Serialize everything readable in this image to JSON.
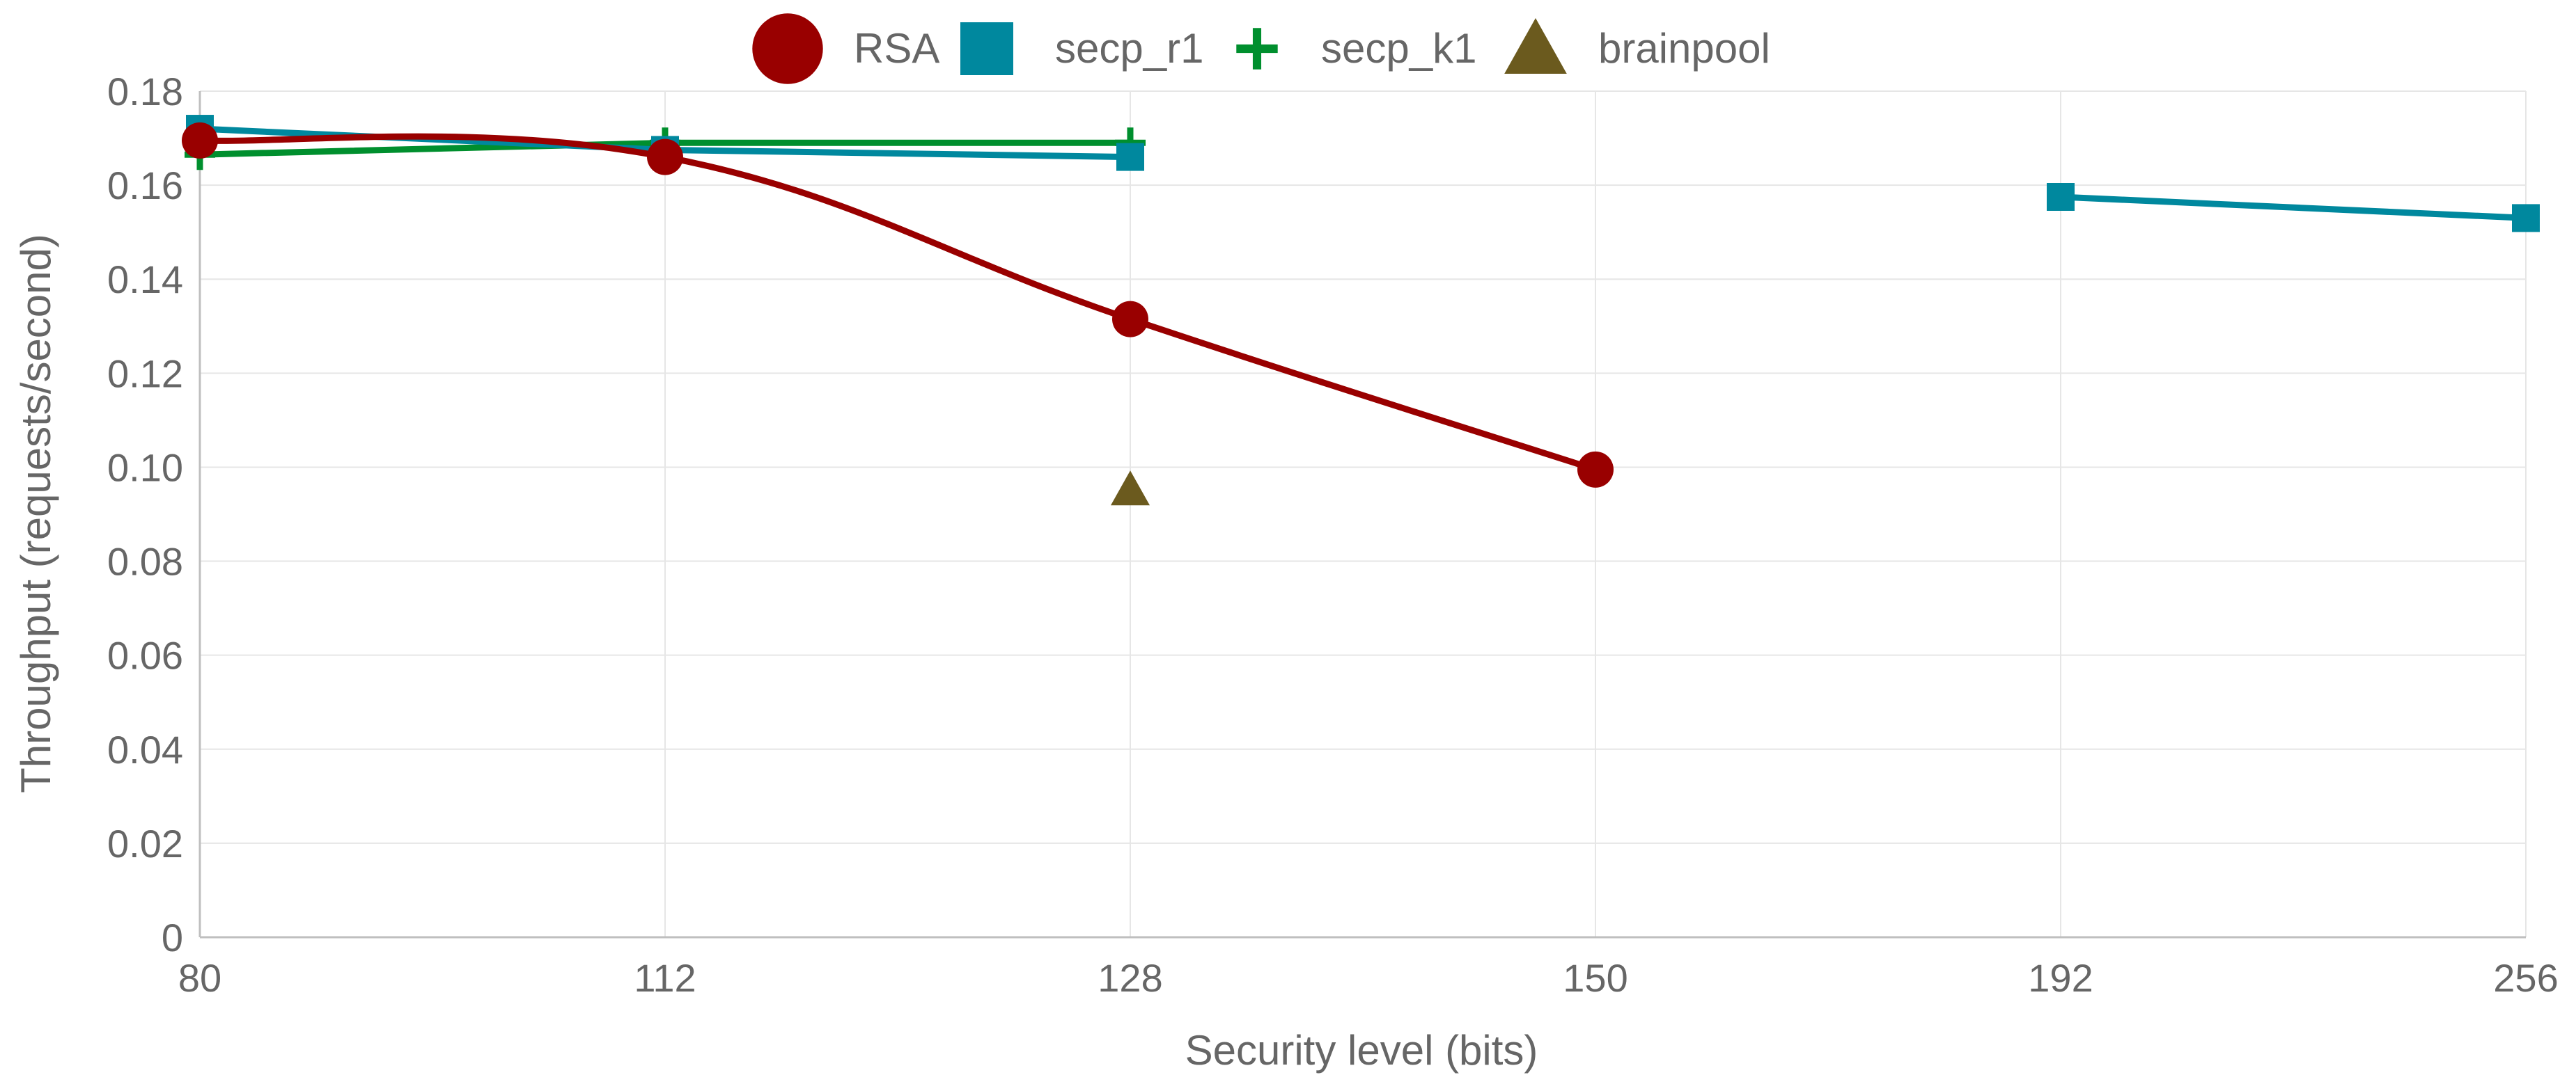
{
  "chart_data": {
    "type": "line",
    "x_axis_kind": "categorical",
    "categories": [
      "80",
      "112",
      "128",
      "150",
      "192",
      "256"
    ],
    "xlabel": "Security level (bits)",
    "ylabel": "Throughput (requests/second)",
    "ylim": [
      0,
      0.18
    ],
    "yticks": [
      0,
      0.02,
      0.04,
      0.06,
      0.08,
      0.1,
      0.12,
      0.14,
      0.16,
      0.18
    ],
    "ytick_labels": [
      "0",
      "0.02",
      "0.04",
      "0.06",
      "0.08",
      "0.10",
      "0.12",
      "0.14",
      "0.16",
      "0.18"
    ],
    "grid": true,
    "legend_position": "top-center",
    "series": [
      {
        "name": "RSA",
        "color": "#990000",
        "marker": "circle",
        "smooth": true,
        "points": [
          {
            "x": "80",
            "y": 0.1695
          },
          {
            "x": "112",
            "y": 0.166
          },
          {
            "x": "128",
            "y": 0.1315
          },
          {
            "x": "150",
            "y": 0.0995
          }
        ]
      },
      {
        "name": "secp_r1",
        "color": "#00889e",
        "marker": "square",
        "smooth": false,
        "segments": [
          [
            {
              "x": "80",
              "y": 0.172
            },
            {
              "x": "112",
              "y": 0.1675
            },
            {
              "x": "128",
              "y": 0.166
            }
          ],
          [
            {
              "x": "192",
              "y": 0.1575
            },
            {
              "x": "256",
              "y": 0.153
            }
          ]
        ]
      },
      {
        "name": "secp_k1",
        "color": "#008f2e",
        "marker": "plus",
        "smooth": false,
        "points": [
          {
            "x": "80",
            "y": 0.1665
          },
          {
            "x": "112",
            "y": 0.169
          },
          {
            "x": "128",
            "y": 0.169
          }
        ]
      },
      {
        "name": "brainpool",
        "color": "#6b5a1e",
        "marker": "triangle",
        "smooth": false,
        "points": [
          {
            "x": "128",
            "y": 0.095
          }
        ]
      }
    ]
  }
}
